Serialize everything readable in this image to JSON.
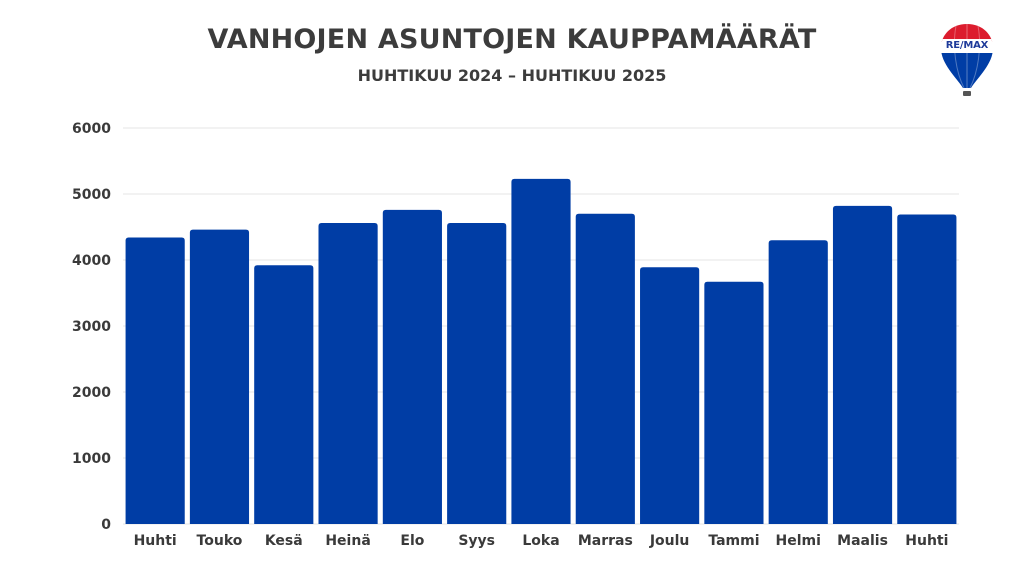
{
  "title": "VANHOJEN ASUNTOJEN KAUPPAMÄÄRÄT",
  "subtitle": "HUHTIKUU 2024 – HUHTIKUU 2025",
  "logo_text": "RE/MAX",
  "chart_data": {
    "type": "bar",
    "title": "VANHOJEN ASUNTOJEN KAUPPAMÄÄRÄT",
    "subtitle": "HUHTIKUU 2024 – HUHTIKUU 2025",
    "categories": [
      "Huhti",
      "Touko",
      "Kesä",
      "Heinä",
      "Elo",
      "Syys",
      "Loka",
      "Marras",
      "Joulu",
      "Tammi",
      "Helmi",
      "Maalis",
      "Huhti"
    ],
    "values": [
      4340,
      4460,
      3920,
      4560,
      4760,
      4560,
      5230,
      4700,
      3890,
      3670,
      4300,
      4820,
      4690
    ],
    "xlabel": "",
    "ylabel": "",
    "ylim": [
      0,
      6000
    ],
    "yticks": [
      0,
      1000,
      2000,
      3000,
      4000,
      5000,
      6000
    ],
    "grid": true,
    "colors": {
      "bar": "#003DA5",
      "grid": "#e6e6e6",
      "logo_red": "#DC1C2E",
      "logo_blue": "#003DA5"
    }
  }
}
